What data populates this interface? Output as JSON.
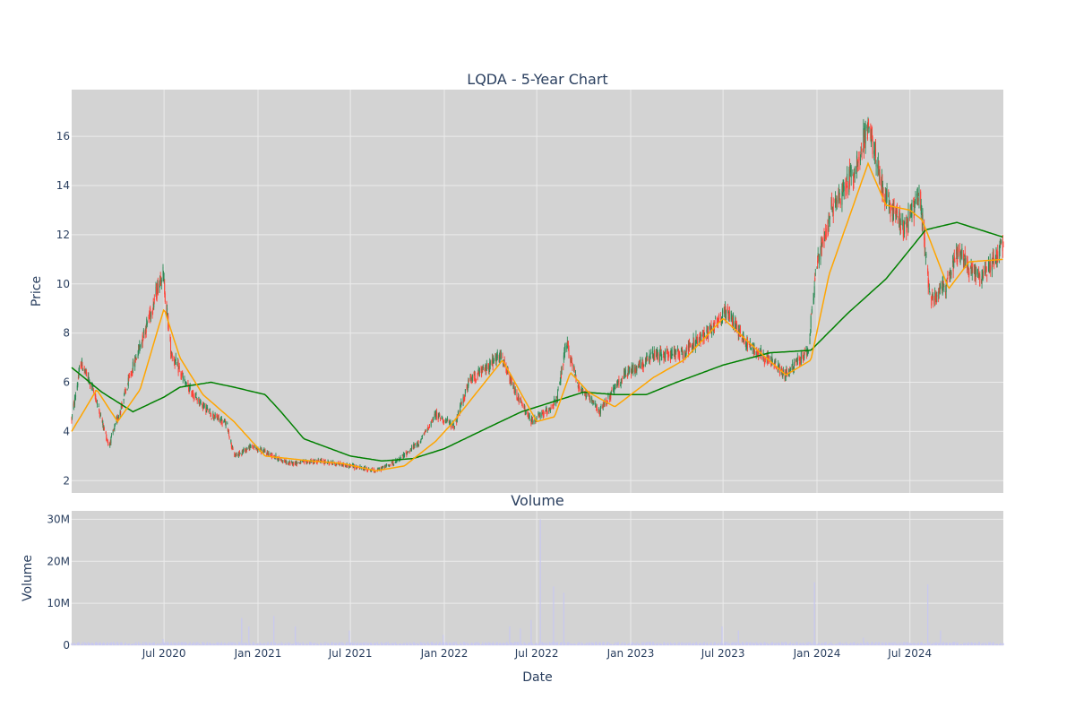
{
  "colors": {
    "plot_bg": "#d3d3d3",
    "grid": "#ebebeb",
    "text": "#2a3f5f",
    "increasing": "#2e8b57",
    "decreasing": "#ff4136",
    "ma_short": "#ffa500",
    "ma_long": "#008000",
    "volume": "#c8c8f0"
  },
  "chart_data": [
    {
      "type": "candlestick",
      "title": "LQDA - 5-Year Chart",
      "ylabel": "Price",
      "ylim": [
        1.5,
        17.9
      ],
      "yticks": [
        2,
        4,
        6,
        8,
        10,
        12,
        14,
        16
      ],
      "x_range": [
        "2020-01-02",
        "2024-12-31"
      ],
      "price_path_keypoints": [
        [
          "2020-01-02",
          4.5
        ],
        [
          "2020-01-20",
          6.8
        ],
        [
          "2020-02-15",
          5.6
        ],
        [
          "2020-03-15",
          3.4
        ],
        [
          "2020-04-05",
          4.8
        ],
        [
          "2020-05-01",
          6.6
        ],
        [
          "2020-06-10",
          9.2
        ],
        [
          "2020-06-28",
          10.6
        ],
        [
          "2020-07-15",
          7.2
        ],
        [
          "2020-08-15",
          5.8
        ],
        [
          "2020-10-01",
          4.7
        ],
        [
          "2020-11-01",
          4.3
        ],
        [
          "2020-11-15",
          3.0
        ],
        [
          "2020-12-20",
          3.4
        ],
        [
          "2021-02-01",
          3.0
        ],
        [
          "2021-03-01",
          2.7
        ],
        [
          "2021-05-01",
          2.8
        ],
        [
          "2021-07-01",
          2.6
        ],
        [
          "2021-08-20",
          2.4
        ],
        [
          "2021-10-01",
          2.8
        ],
        [
          "2021-11-15",
          3.6
        ],
        [
          "2021-12-15",
          4.7
        ],
        [
          "2022-01-20",
          4.2
        ],
        [
          "2022-02-20",
          6.1
        ],
        [
          "2022-03-20",
          6.5
        ],
        [
          "2022-04-20",
          7.1
        ],
        [
          "2022-05-20",
          5.6
        ],
        [
          "2022-06-20",
          4.4
        ],
        [
          "2022-07-20",
          4.8
        ],
        [
          "2022-08-10",
          5.3
        ],
        [
          "2022-08-28",
          7.6
        ],
        [
          "2022-09-20",
          5.9
        ],
        [
          "2022-11-01",
          4.8
        ],
        [
          "2022-12-15",
          6.2
        ],
        [
          "2023-02-15",
          7.1
        ],
        [
          "2023-04-15",
          7.2
        ],
        [
          "2023-06-01",
          8.1
        ],
        [
          "2023-07-10",
          8.9
        ],
        [
          "2023-08-15",
          7.6
        ],
        [
          "2023-10-01",
          6.9
        ],
        [
          "2023-11-01",
          6.3
        ],
        [
          "2023-12-15",
          7.3
        ],
        [
          "2023-12-30",
          10.6
        ],
        [
          "2024-02-01",
          13.2
        ],
        [
          "2024-03-15",
          14.6
        ],
        [
          "2024-04-10",
          16.4
        ],
        [
          "2024-05-15",
          13.4
        ],
        [
          "2024-06-20",
          12.3
        ],
        [
          "2024-07-20",
          13.6
        ],
        [
          "2024-08-10",
          9.4
        ],
        [
          "2024-09-10",
          9.9
        ],
        [
          "2024-10-01",
          11.3
        ],
        [
          "2024-11-15",
          10.2
        ],
        [
          "2024-12-31",
          11.6
        ]
      ],
      "ma_short_path": [
        [
          "2020-01-02",
          4.0
        ],
        [
          "2020-02-20",
          5.7
        ],
        [
          "2020-04-01",
          4.4
        ],
        [
          "2020-05-15",
          5.7
        ],
        [
          "2020-07-01",
          9.0
        ],
        [
          "2020-08-01",
          7.0
        ],
        [
          "2020-09-15",
          5.5
        ],
        [
          "2020-11-15",
          4.4
        ],
        [
          "2021-01-15",
          3.0
        ],
        [
          "2021-04-15",
          2.8
        ],
        [
          "2021-06-15",
          2.7
        ],
        [
          "2021-08-20",
          2.4
        ],
        [
          "2021-10-15",
          2.6
        ],
        [
          "2021-12-15",
          3.6
        ],
        [
          "2022-01-15",
          4.3
        ],
        [
          "2022-04-25",
          6.9
        ],
        [
          "2022-07-01",
          4.4
        ],
        [
          "2022-08-05",
          4.6
        ],
        [
          "2022-09-05",
          6.4
        ],
        [
          "2022-10-10",
          5.6
        ],
        [
          "2022-12-01",
          5.0
        ],
        [
          "2023-02-15",
          6.2
        ],
        [
          "2023-04-15",
          6.9
        ],
        [
          "2023-07-01",
          8.6
        ],
        [
          "2023-09-01",
          7.4
        ],
        [
          "2023-11-01",
          6.3
        ],
        [
          "2023-12-20",
          6.9
        ],
        [
          "2024-01-25",
          10.4
        ],
        [
          "2024-04-10",
          14.9
        ],
        [
          "2024-05-15",
          13.2
        ],
        [
          "2024-07-01",
          13.0
        ],
        [
          "2024-07-25",
          12.6
        ],
        [
          "2024-09-15",
          9.8
        ],
        [
          "2024-10-25",
          10.9
        ],
        [
          "2024-12-31",
          11.0
        ]
      ],
      "ma_long_path": [
        [
          "2020-01-02",
          6.6
        ],
        [
          "2020-03-01",
          5.6
        ],
        [
          "2020-05-01",
          4.8
        ],
        [
          "2020-07-01",
          5.4
        ],
        [
          "2020-08-01",
          5.8
        ],
        [
          "2020-10-01",
          6.0
        ],
        [
          "2020-11-15",
          5.8
        ],
        [
          "2021-01-15",
          5.5
        ],
        [
          "2021-02-15",
          4.8
        ],
        [
          "2021-04-01",
          3.7
        ],
        [
          "2021-07-01",
          3.0
        ],
        [
          "2021-09-01",
          2.8
        ],
        [
          "2021-11-01",
          2.9
        ],
        [
          "2022-01-01",
          3.3
        ],
        [
          "2022-04-01",
          4.2
        ],
        [
          "2022-06-01",
          4.8
        ],
        [
          "2022-08-01",
          5.2
        ],
        [
          "2022-10-01",
          5.6
        ],
        [
          "2022-12-01",
          5.5
        ],
        [
          "2023-02-01",
          5.5
        ],
        [
          "2023-04-01",
          6.0
        ],
        [
          "2023-07-01",
          6.7
        ],
        [
          "2023-10-01",
          7.2
        ],
        [
          "2023-12-20",
          7.3
        ],
        [
          "2024-03-01",
          8.8
        ],
        [
          "2024-05-15",
          10.2
        ],
        [
          "2024-07-01",
          11.4
        ],
        [
          "2024-08-01",
          12.2
        ],
        [
          "2024-10-01",
          12.5
        ],
        [
          "2024-12-31",
          11.9
        ]
      ]
    },
    {
      "type": "bar",
      "title": "Volume",
      "xlabel": "Date",
      "ylabel": "Volume",
      "ylim": [
        0,
        32000000
      ],
      "yticks": [
        0,
        10000000,
        20000000,
        30000000
      ],
      "ytick_labels": [
        "0",
        "10M",
        "20M",
        "30M"
      ],
      "x_ticks": [
        "2020-07-01",
        "2021-01-01",
        "2021-07-01",
        "2022-01-01",
        "2022-07-01",
        "2023-01-01",
        "2023-07-01",
        "2024-01-01",
        "2024-07-01"
      ],
      "x_tick_labels": [
        "Jul 2020",
        "Jan 2021",
        "Jul 2021",
        "Jan 2022",
        "Jul 2022",
        "Jan 2023",
        "Jul 2023",
        "Jan 2024",
        "Jul 2024"
      ],
      "baseline_volume": 500000,
      "volume_spikes": [
        [
          "2020-07-01",
          1500000
        ],
        [
          "2020-12-01",
          6500000
        ],
        [
          "2020-12-15",
          4500000
        ],
        [
          "2021-02-01",
          7000000
        ],
        [
          "2021-03-15",
          4500000
        ],
        [
          "2021-07-01",
          3500000
        ],
        [
          "2022-01-01",
          2500000
        ],
        [
          "2022-05-10",
          4500000
        ],
        [
          "2022-06-01",
          4000000
        ],
        [
          "2022-06-20",
          6000000
        ],
        [
          "2022-07-10",
          30000000
        ],
        [
          "2022-08-05",
          14000000
        ],
        [
          "2022-08-25",
          12500000
        ],
        [
          "2023-07-01",
          4500000
        ],
        [
          "2023-08-01",
          3500000
        ],
        [
          "2023-12-29",
          15000000
        ],
        [
          "2024-04-01",
          1800000
        ],
        [
          "2024-08-05",
          14500000
        ],
        [
          "2024-09-01",
          3500000
        ]
      ]
    }
  ]
}
